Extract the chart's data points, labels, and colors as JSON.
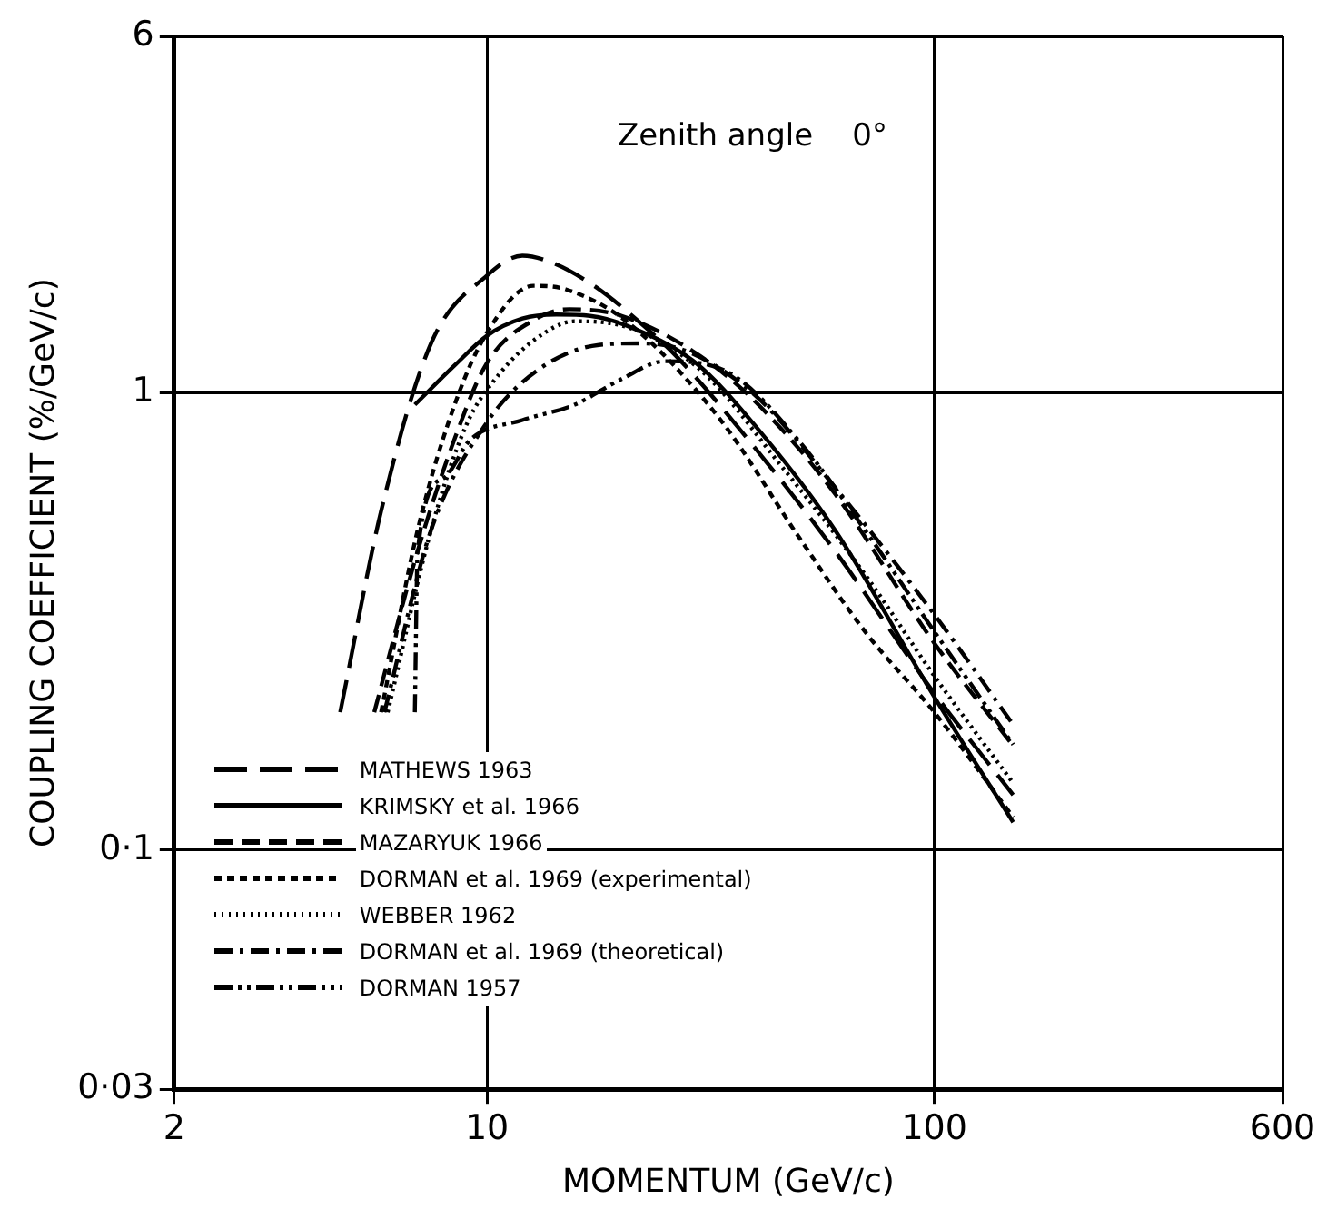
{
  "chart_data": {
    "type": "line",
    "xlabel": "MOMENTUM (GeV/c)",
    "ylabel": "COUPLING COEFFICIENT (%/GeV/c)",
    "annotations": [
      "Zenith angle    0°"
    ],
    "log": "xy",
    "grid": true,
    "legend": "bottom left",
    "marker": "none",
    "color": "#000000",
    "xlim": [
      2,
      600
    ],
    "xticks": [
      2,
      10,
      100,
      600
    ],
    "ylim": [
      0.03,
      6
    ],
    "yticks": [
      {
        "value": 0.03,
        "label": "0·03"
      },
      {
        "value": 0.1,
        "label": "0·1"
      },
      1,
      6
    ],
    "series": [
      {
        "name": "MATHEWS  1963",
        "line_style": "longdash",
        "x": [
          4.7,
          5.8,
          7.5,
          10,
          12,
          14,
          17.5,
          22,
          26.5,
          40,
          60,
          100,
          150
        ],
        "values": [
          0.2,
          0.55,
          1.28,
          1.8,
          1.99,
          1.92,
          1.7,
          1.42,
          1.2,
          0.75,
          0.45,
          0.22,
          0.132
        ]
      },
      {
        "name": "KRIMSKY et al. 1966",
        "line_style": "solid",
        "x": [
          6.9,
          8.5,
          10,
          12,
          14.3,
          17,
          20.5,
          29.3,
          40,
          60,
          100,
          150
        ],
        "values": [
          0.94,
          1.15,
          1.33,
          1.45,
          1.48,
          1.47,
          1.4,
          1.16,
          0.84,
          0.5,
          0.216,
          0.115
        ]
      },
      {
        "name": "MAZARYUK  1966",
        "line_style": "dashed",
        "x": [
          5.6,
          7,
          8.5,
          10,
          12.9,
          15.3,
          20,
          30,
          40,
          60,
          100,
          150
        ],
        "values": [
          0.2,
          0.45,
          0.8,
          1.16,
          1.45,
          1.52,
          1.47,
          1.2,
          0.95,
          0.6,
          0.283,
          0.169
        ]
      },
      {
        "name": "DORMAN et al. 1969 (experimental)",
        "line_style": "dotted",
        "x": [
          5.8,
          7,
          8.5,
          10,
          12.7,
          15,
          20.5,
          33,
          50,
          70,
          100,
          150
        ],
        "values": [
          0.2,
          0.5,
          0.95,
          1.35,
          1.71,
          1.68,
          1.43,
          0.88,
          0.48,
          0.3,
          0.2,
          0.118
        ]
      },
      {
        "name": "WEBBER  1962",
        "line_style": "densedot",
        "x": [
          6,
          7.5,
          9,
          10.6,
          13,
          15.7,
          20,
          30,
          45,
          70,
          100,
          150
        ],
        "values": [
          0.2,
          0.5,
          0.85,
          1.09,
          1.32,
          1.43,
          1.4,
          1.12,
          0.7,
          0.4,
          0.24,
          0.14
        ]
      },
      {
        "name": "DORMAN et al. 1969  (theoretical)",
        "line_style": "dashdot",
        "x": [
          5.9,
          7.5,
          10,
          13,
          17.8,
          22,
          28,
          40,
          60,
          100,
          150
        ],
        "values": [
          0.2,
          0.5,
          0.86,
          1.12,
          1.27,
          1.28,
          1.23,
          0.98,
          0.62,
          0.327,
          0.188
        ]
      },
      {
        "name": "DORMAN  1957",
        "line_style": "dashdotdot",
        "x": [
          6.9,
          7,
          8,
          9.2,
          12,
          15.7,
          20,
          25,
          35,
          50,
          70,
          100,
          150
        ],
        "values": [
          0.2,
          0.45,
          0.65,
          0.79,
          0.87,
          0.94,
          1.07,
          1.17,
          1.1,
          0.78,
          0.5,
          0.3,
          0.17
        ]
      }
    ]
  }
}
